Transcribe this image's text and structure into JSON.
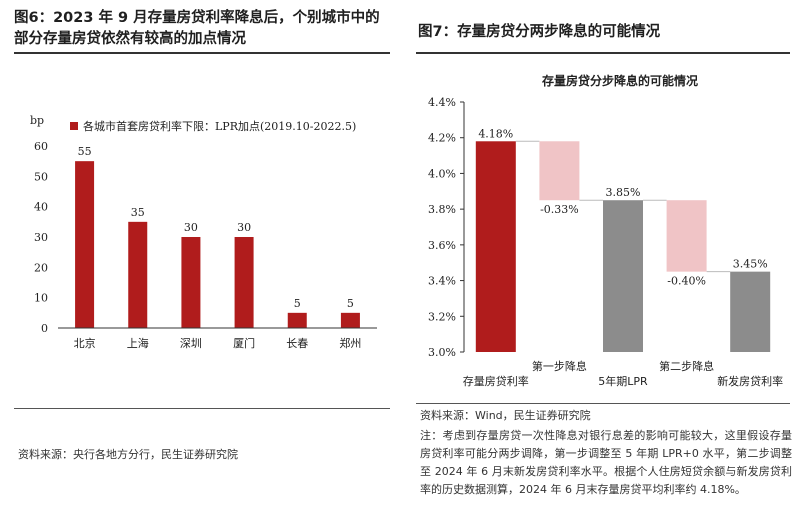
{
  "figure6": {
    "title": "图6：2023 年 9 月存量房贷利率降息后，个别城市中的部分存量房贷依然有较高的加点情况",
    "source": "资料来源：央行各地方分行，民生证券研究院",
    "chart_data": {
      "type": "bar",
      "ylabel": "bp",
      "ylim": [
        0,
        60
      ],
      "yticks": [
        0,
        10,
        20,
        30,
        40,
        50,
        60
      ],
      "categories": [
        "北京",
        "上海",
        "深圳",
        "厦门",
        "长春",
        "郑州"
      ],
      "series": [
        {
          "name": "各城市首套房贷利率下限：LPR加点(2019.10-2022.5)",
          "values": [
            55,
            35,
            30,
            30,
            5,
            5
          ]
        }
      ],
      "data_labels": [
        "55",
        "35",
        "30",
        "30",
        "5",
        "5"
      ],
      "legend": "top-left",
      "grid": false,
      "colors": {
        "bar": "#b01c1c"
      }
    }
  },
  "figure7": {
    "title": "图7：存量房贷分两步降息的可能情况",
    "source": "资料来源：Wind，民生证券研究院",
    "note": "注：考虑到存量房贷一次性降息对银行息差的影响可能较大，这里假设存量房贷利率可能分两步调降，第一步调整至 5 年期 LPR+0 水平，第二步调整至 2024 年 6 月末新发房贷利率水平。根据个人住房短贷余额与新发房贷利率的历史数据测算，2024 年 6 月末存量房贷平均利率约 4.18%。",
    "chart_data": {
      "type": "bar",
      "subtype": "waterfall",
      "title": "存量房贷分步降息的可能情况",
      "ylim": [
        3.0,
        4.4
      ],
      "yticks": [
        "3.0%",
        "3.2%",
        "3.4%",
        "3.6%",
        "3.8%",
        "4.0%",
        "4.2%",
        "4.4%"
      ],
      "ytick_values": [
        3.0,
        3.2,
        3.4,
        3.6,
        3.8,
        4.0,
        4.2,
        4.4
      ],
      "categories": [
        "存量房贷利率",
        "第一步降息",
        "5年期LPR",
        "第二步降息",
        "新发房贷利率"
      ],
      "bars": [
        {
          "kind": "total",
          "base": 3.0,
          "value": 4.18,
          "label": "4.18%"
        },
        {
          "kind": "delta",
          "from": 4.18,
          "to": 3.85,
          "label": "-0.33%"
        },
        {
          "kind": "total",
          "base": 3.0,
          "value": 3.85,
          "label": "3.85%"
        },
        {
          "kind": "delta",
          "from": 3.85,
          "to": 3.45,
          "label": "-0.40%"
        },
        {
          "kind": "total",
          "base": 3.0,
          "value": 3.45,
          "label": "3.45%"
        }
      ],
      "grid": false,
      "colors": {
        "start": "#b01c1c",
        "delta": "#f0c4c6",
        "total": "#8c8c8c"
      }
    }
  }
}
